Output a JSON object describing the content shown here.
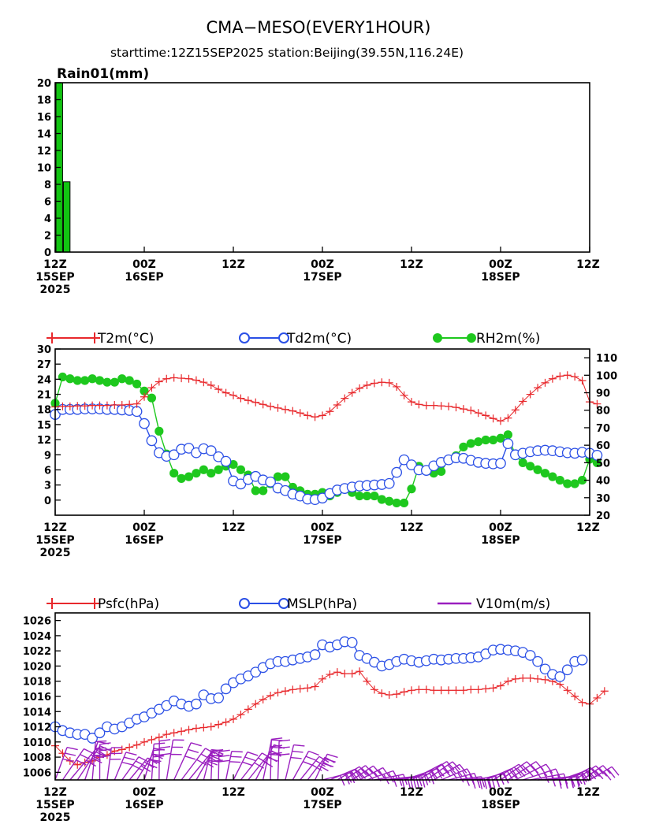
{
  "header": {
    "title": "CMA−MESO(EVERY1HOUR)",
    "subtitle": "starttime:12Z15SEP2025    station:Beijing(39.55N,116.24E)"
  },
  "time_axis": {
    "ticks": [
      {
        "hour": 0,
        "lines": [
          "12Z",
          "15SEP",
          "2025"
        ]
      },
      {
        "hour": 12,
        "lines": [
          "00Z",
          "16SEP"
        ]
      },
      {
        "hour": 24,
        "lines": [
          "12Z"
        ]
      },
      {
        "hour": 36,
        "lines": [
          "00Z",
          "17SEP"
        ]
      },
      {
        "hour": 48,
        "lines": [
          "12Z"
        ]
      },
      {
        "hour": 60,
        "lines": [
          "00Z",
          "18SEP"
        ]
      },
      {
        "hour": 72,
        "lines": [
          "12Z"
        ]
      }
    ]
  },
  "colors": {
    "temp": "#e8282c",
    "dew": "#2a4fe6",
    "rh": "#1ec81e",
    "wind": "#9a1fbf",
    "rain": "#12c412"
  },
  "chart_data": [
    {
      "type": "bar",
      "label": "Rain01(mm)",
      "x": [
        1,
        2
      ],
      "values": [
        20,
        8.3
      ],
      "xlim": [
        0,
        72
      ],
      "ylim": [
        0,
        20
      ],
      "yticks": [
        0,
        2,
        4,
        6,
        8,
        10,
        12,
        14,
        16,
        18,
        20
      ]
    },
    {
      "type": "line",
      "xlim": [
        0,
        72
      ],
      "ylim": [
        -3,
        30
      ],
      "yticks": [
        0,
        3,
        6,
        9,
        12,
        15,
        18,
        21,
        24,
        27,
        30
      ],
      "y2lim": [
        20,
        115
      ],
      "y2ticks": [
        20,
        30,
        40,
        50,
        60,
        70,
        80,
        90,
        100,
        110
      ],
      "series": [
        {
          "name": "T2m(°C)",
          "axis": "left",
          "marker": "plus",
          "values": [
            18.5,
            18.6,
            18.6,
            18.7,
            18.7,
            18.8,
            18.8,
            18.8,
            18.9,
            18.9,
            19,
            19.1,
            20.5,
            22.3,
            23.5,
            24.1,
            24.3,
            24.2,
            24.1,
            23.8,
            23.4,
            22.8,
            22,
            21.3,
            20.8,
            20.2,
            19.8,
            19.4,
            19.0,
            18.6,
            18.3,
            18.0,
            17.7,
            17.3,
            16.8,
            16.5,
            16.8,
            17.6,
            18.9,
            20.2,
            21.3,
            22.2,
            22.8,
            23.2,
            23.4,
            23.3,
            22.5,
            20.8,
            19.5,
            19.0,
            18.8,
            18.8,
            18.7,
            18.6,
            18.4,
            18.1,
            17.8,
            17.3,
            16.8,
            16.2,
            15.7,
            16.3,
            17.9,
            19.6,
            21.0,
            22.3,
            23.3,
            24.1,
            24.6,
            24.8,
            24.5,
            23.7,
            19.5,
            19.1
          ]
        },
        {
          "name": "Td2m(°C)",
          "axis": "left",
          "marker": "circle",
          "values": [
            17,
            18,
            18,
            18,
            18.1,
            18.1,
            18.1,
            18,
            18,
            17.9,
            17.8,
            17.6,
            15.2,
            11.8,
            9.4,
            8.7,
            9.0,
            10.1,
            10.3,
            9.4,
            10.2,
            9.8,
            8.6,
            7.7,
            3.8,
            3.2,
            4.1,
            4.7,
            4.0,
            3.6,
            2.4,
            1.9,
            1.2,
            0.8,
            0.2,
            0.1,
            0.4,
            1.3,
            2.0,
            2.3,
            2.6,
            2.8,
            2.9,
            3.0,
            3.1,
            3.3,
            5.5,
            8.0,
            7.0,
            6.0,
            5.9,
            6.8,
            7.5,
            8.0,
            8.4,
            8.3,
            7.9,
            7.5,
            7.3,
            7.2,
            7.3,
            11.2,
            9.0,
            9.3,
            9.6,
            9.8,
            9.9,
            9.8,
            9.6,
            9.4,
            9.3,
            9.5,
            9.3,
            8.9
          ]
        },
        {
          "name": "RH2m(%)",
          "axis": "right",
          "marker": "dot",
          "values": [
            84,
            99,
            98,
            97,
            97,
            98,
            97,
            96,
            96,
            98,
            97,
            95,
            91,
            87,
            68,
            55,
            44,
            41,
            42,
            44,
            46,
            44,
            46,
            48,
            49,
            46,
            43,
            34,
            34,
            38,
            42,
            42,
            36,
            34,
            32,
            32,
            33,
            31,
            33,
            35,
            33,
            31,
            31,
            31,
            29,
            28,
            27,
            27,
            35,
            48,
            46,
            44,
            45,
            52,
            54,
            59,
            61,
            62,
            63,
            63,
            64,
            66,
            54,
            50,
            48,
            46,
            44,
            42,
            40,
            38,
            38,
            40,
            52,
            50
          ]
        }
      ]
    },
    {
      "type": "line",
      "xlim": [
        0,
        72
      ],
      "ylim": [
        1005,
        1027
      ],
      "yticks": [
        1006,
        1008,
        1010,
        1012,
        1014,
        1016,
        1018,
        1020,
        1022,
        1024,
        1026
      ],
      "series": [
        {
          "name": "Psfc(hPa)",
          "marker": "plus",
          "values": [
            1009.5,
            1008.5,
            1007.5,
            1007.0,
            1007.3,
            1007.5,
            1008.0,
            1008.3,
            1008.8,
            1009.0,
            1009.3,
            1009.6,
            1010.0,
            1010.3,
            1010.6,
            1011.0,
            1011.2,
            1011.4,
            1011.6,
            1011.8,
            1011.9,
            1012.0,
            1012.3,
            1012.6,
            1013.0,
            1013.6,
            1014.3,
            1015.0,
            1015.6,
            1016.1,
            1016.5,
            1016.7,
            1016.9,
            1017.0,
            1017.1,
            1017.3,
            1018.3,
            1018.9,
            1019.2,
            1019.0,
            1019.0,
            1019.3,
            1018.0,
            1016.9,
            1016.4,
            1016.2,
            1016.3,
            1016.6,
            1016.8,
            1016.9,
            1016.9,
            1016.8,
            1016.8,
            1016.8,
            1016.8,
            1016.8,
            1016.9,
            1016.9,
            1017.0,
            1017.1,
            1017.4,
            1018.0,
            1018.3,
            1018.4,
            1018.4,
            1018.3,
            1018.2,
            1018.0,
            1017.6,
            1016.8,
            1016.0,
            1015.2,
            1015.0,
            1015.8,
            1016.7
          ]
        },
        {
          "name": "MSLP(hPa)",
          "marker": "circle",
          "values": [
            1012,
            1011.5,
            1011.2,
            1011.0,
            1011.0,
            1010.5,
            1011.2,
            1012.0,
            1011.7,
            1012.0,
            1012.5,
            1013.0,
            1013.3,
            1013.8,
            1014.3,
            1014.8,
            1015.4,
            1015.0,
            1014.7,
            1015.0,
            1016.2,
            1015.7,
            1015.8,
            1017.0,
            1017.8,
            1018.3,
            1018.7,
            1019.2,
            1019.8,
            1020.3,
            1020.6,
            1020.6,
            1020.8,
            1021.0,
            1021.2,
            1021.5,
            1022.8,
            1022.5,
            1022.8,
            1023.2,
            1023.1,
            1021.4,
            1021.0,
            1020.5,
            1020.0,
            1020.2,
            1020.6,
            1020.9,
            1020.7,
            1020.5,
            1020.7,
            1020.9,
            1020.8,
            1020.9,
            1021.0,
            1021.0,
            1021.1,
            1021.2,
            1021.6,
            1022.1,
            1022.2,
            1022.1,
            1022.0,
            1021.8,
            1021.4,
            1020.6,
            1019.6,
            1018.9,
            1018.6,
            1019.5,
            1020.6,
            1020.8
          ]
        },
        {
          "name": "V10m(m/s)",
          "marker": "barb"
        }
      ]
    }
  ]
}
